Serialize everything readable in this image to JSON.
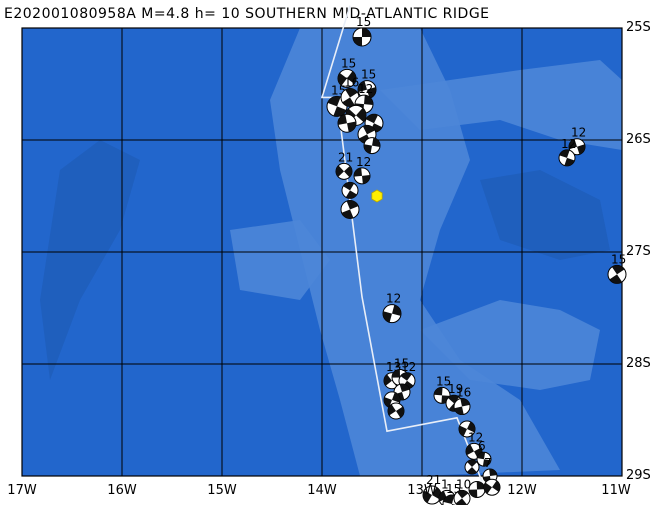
{
  "title": "E202001080958A M=4.8 h= 10 SOUTHERN MID-ATLANTIC RIDGE",
  "lat_labels": [
    "25S",
    "26S",
    "27S",
    "28S",
    "29S"
  ],
  "lon_labels": [
    "17W",
    "16W",
    "15W",
    "14W",
    "13W",
    "12W",
    "11W"
  ],
  "colors": {
    "ocean": "#2266cc",
    "ridge": "#4d86d8",
    "deep": "#1f5fbd",
    "grid": "#000000",
    "plate_boundary": "#e8eef8",
    "epicenter": "#ffee00"
  },
  "event": {
    "lon": -13.45,
    "lat": -26.5,
    "marker": "hexagon"
  },
  "plate_boundary": [
    [
      -13.72,
      -24.8
    ],
    [
      -14.0,
      -25.62
    ],
    [
      -13.85,
      -25.62
    ],
    [
      -13.6,
      -27.4
    ],
    [
      -13.35,
      -28.6
    ],
    [
      -12.65,
      -28.48
    ],
    [
      -12.4,
      -29.05
    ]
  ],
  "mechanisms": [
    {
      "lon": -13.6,
      "lat": -25.08,
      "label": "15",
      "size": 9
    },
    {
      "lon": -13.75,
      "lat": -25.45,
      "label": "15",
      "size": 9
    },
    {
      "lon": -13.55,
      "lat": -25.55,
      "label": "15",
      "size": 9
    },
    {
      "lon": -13.85,
      "lat": -25.7,
      "label": "15",
      "size": 10
    },
    {
      "lon": -13.72,
      "lat": -25.62,
      "label": "16",
      "size": 9
    },
    {
      "lon": -13.58,
      "lat": -25.68,
      "label": "12",
      "size": 9
    },
    {
      "lon": -13.66,
      "lat": -25.78,
      "label": "",
      "size": 10
    },
    {
      "lon": -13.75,
      "lat": -25.85,
      "label": "",
      "size": 9
    },
    {
      "lon": -13.48,
      "lat": -25.85,
      "label": "",
      "size": 9
    },
    {
      "lon": -13.55,
      "lat": -25.95,
      "label": "",
      "size": 9
    },
    {
      "lon": -13.5,
      "lat": -26.05,
      "label": "",
      "size": 8
    },
    {
      "lon": -13.78,
      "lat": -26.28,
      "label": "21",
      "size": 8
    },
    {
      "lon": -13.6,
      "lat": -26.32,
      "label": "12",
      "size": 8
    },
    {
      "lon": -13.72,
      "lat": -26.45,
      "label": "",
      "size": 8
    },
    {
      "lon": -13.72,
      "lat": -26.62,
      "label": "",
      "size": 9
    },
    {
      "lon": -13.3,
      "lat": -27.55,
      "label": "12",
      "size": 9
    },
    {
      "lon": -13.3,
      "lat": -28.15,
      "label": "13",
      "size": 8
    },
    {
      "lon": -13.22,
      "lat": -28.12,
      "label": "15",
      "size": 8
    },
    {
      "lon": -13.15,
      "lat": -28.15,
      "label": "12",
      "size": 8
    },
    {
      "lon": -13.2,
      "lat": -28.25,
      "label": "",
      "size": 8
    },
    {
      "lon": -13.3,
      "lat": -28.32,
      "label": "",
      "size": 8
    },
    {
      "lon": -13.26,
      "lat": -28.42,
      "label": "",
      "size": 8
    },
    {
      "lon": -12.8,
      "lat": -28.28,
      "label": "15",
      "size": 8
    },
    {
      "lon": -12.68,
      "lat": -28.35,
      "label": "19",
      "size": 8
    },
    {
      "lon": -12.6,
      "lat": -28.38,
      "label": "16",
      "size": 8
    },
    {
      "lon": -12.55,
      "lat": -28.58,
      "label": "",
      "size": 8
    },
    {
      "lon": -12.48,
      "lat": -28.78,
      "label": "12",
      "size": 8
    },
    {
      "lon": -12.38,
      "lat": -28.85,
      "label": "6",
      "size": 7
    },
    {
      "lon": -12.5,
      "lat": -28.92,
      "label": "",
      "size": 7
    },
    {
      "lon": -12.32,
      "lat": -29.0,
      "label": "7",
      "size": 7
    },
    {
      "lon": -12.9,
      "lat": -29.17,
      "label": "21",
      "size": 9
    },
    {
      "lon": -12.75,
      "lat": -29.2,
      "label": "1",
      "size": 8
    },
    {
      "lon": -12.7,
      "lat": -29.25,
      "label": "15",
      "size": 9
    },
    {
      "lon": -12.6,
      "lat": -29.2,
      "label": "10",
      "size": 8
    },
    {
      "lon": -12.45,
      "lat": -29.12,
      "label": "",
      "size": 8
    },
    {
      "lon": -12.3,
      "lat": -29.1,
      "label": "",
      "size": 8
    },
    {
      "lon": -11.45,
      "lat": -26.06,
      "label": "12",
      "size": 8
    },
    {
      "lon": -11.55,
      "lat": -26.16,
      "label": "12",
      "size": 8
    },
    {
      "lon": -11.05,
      "lat": -27.2,
      "label": "15",
      "size": 9
    }
  ]
}
